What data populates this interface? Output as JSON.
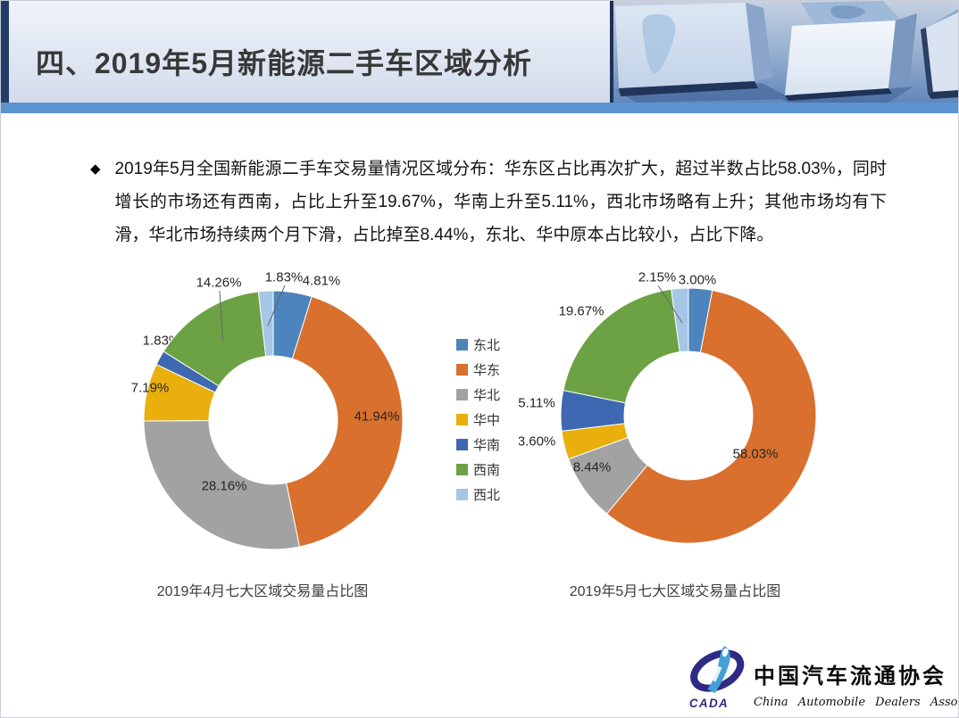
{
  "slide": {
    "title": "四、2019年5月新能源二手车区域分析",
    "bullet_glyph": "◆",
    "bullet_text": "2019年5月全国新能源二手车交易量情况区域分布：华东区占比再次扩大，超过半数占比58.03%，同时增长的市场还有西南，占比上升至19.67%，华南上升至5.11%，西北市场略有上升；其他市场均有下滑，华北市场持续两个月下滑，占比掉至8.44%，东北、华中原本占比较小，占比下降。"
  },
  "theme": {
    "header_strip": "#5b94d1",
    "header_side_bar": "#223e68",
    "label_color": "#262626",
    "leader_line_color": "#666666"
  },
  "chart_data": [
    {
      "type": "pie",
      "subtype": "doughnut",
      "title": "2019年4月七大区域交易量占比图",
      "categories": [
        "东北",
        "华东",
        "华北",
        "华中",
        "华南",
        "西南",
        "西北"
      ],
      "values": [
        4.81,
        41.94,
        28.16,
        7.19,
        1.83,
        14.26,
        1.83
      ],
      "unit": "%",
      "colors": [
        "#4c84bd",
        "#d9702d",
        "#a2a2a2",
        "#e8af0d",
        "#3e68b1",
        "#6ca244",
        "#a5c6e6"
      ],
      "legend_position": "right-of-chart"
    },
    {
      "type": "pie",
      "subtype": "doughnut",
      "title": "2019年5月七大区域交易量占比图",
      "categories": [
        "东北",
        "华东",
        "华北",
        "华中",
        "华南",
        "西南",
        "西北"
      ],
      "values": [
        3.0,
        58.03,
        8.44,
        3.6,
        5.11,
        19.67,
        2.15
      ],
      "unit": "%",
      "colors": [
        "#4c84bd",
        "#d9702d",
        "#a2a2a2",
        "#e8af0d",
        "#3e68b1",
        "#6ca244",
        "#a5c6e6"
      ],
      "legend_position": "left-of-chart"
    }
  ],
  "legend": {
    "items": [
      "东北",
      "华东",
      "华北",
      "华中",
      "华南",
      "西南",
      "西北"
    ]
  },
  "logo": {
    "abbr": "CADA",
    "name_cn": "中国汽车流通协会",
    "name_en": "China Automobile Dealers Association",
    "emblem_navy": "#2e2b85",
    "emblem_blue": "#45a0d8"
  }
}
